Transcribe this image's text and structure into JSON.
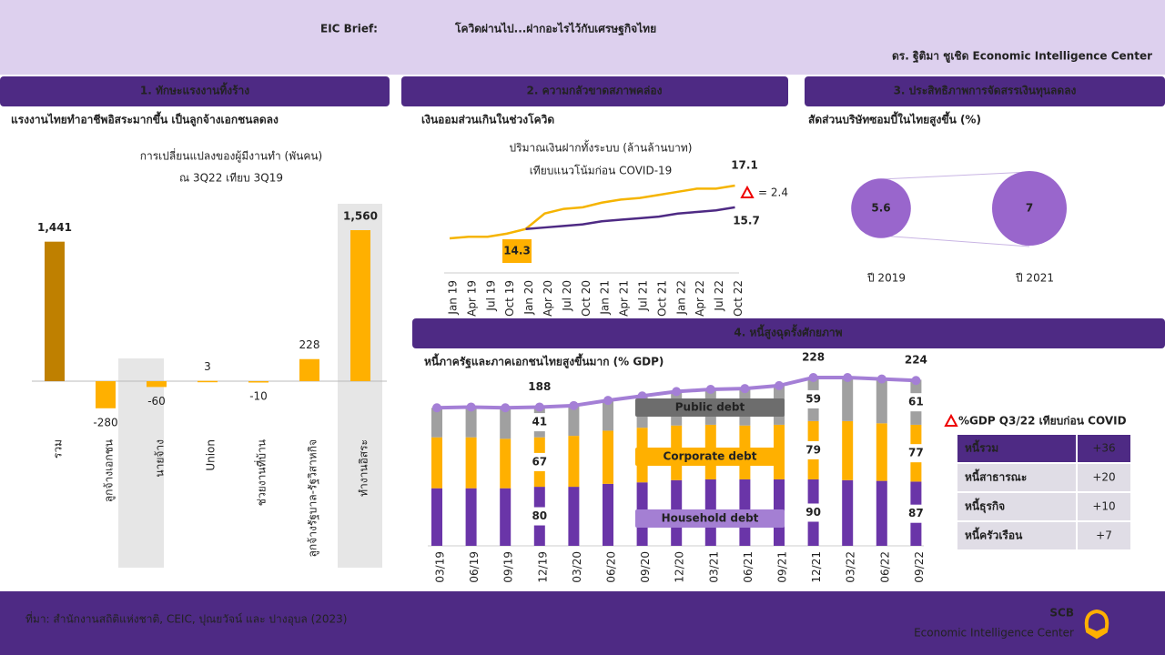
{
  "header": {
    "title_prefix": "EIC Brief:",
    "title": "โควิดผ่านไป...ฝากอะไรไว้กับเศรษฐกิจไทย",
    "author": "ดร. ฐิติมา ชูเชิด Economic Intelligence Center"
  },
  "sections": [
    {
      "heading": "1. ทักษะแรงงานทิ้งร้าง",
      "subheading": "แรงงานไทยทำอาชีพอิสระมากขึ้น เป็นลูกจ้างเอกชนลดลง"
    },
    {
      "heading": "2. ความกลัวขาดสภาพคล่อง",
      "subheading": "เงินออมส่วนเกินในช่วงโควิด"
    },
    {
      "heading": "3. ประสิทธิภาพการจัดสรรเงินทุนลดลง",
      "subheading": "สัดส่วนบริษัทซอมบี้ในไทยสูงขึ้น (%)"
    },
    {
      "heading": "4. หนี้สูงฉุดรั้งศักยภาพ",
      "subheading": "หนี้ภาครัฐและภาคเอกชนไทยสูงขึ้นมาก (% GDP)"
    }
  ],
  "chart_data": [
    {
      "type": "bar",
      "title": "การเปลี่ยนแปลงของผู้มีงานทำ (พันคน)",
      "subtitle": "ณ 3Q22 เทียบ 3Q19",
      "categories": [
        "รวม",
        "ลูกจ้างเอกชน",
        "นายจ้าง",
        "Union",
        "ช่วยงานที่บ้าน",
        "ลูกจ้างรัฐบาล-รัฐวิสาหกิจ",
        "ทำงานอิสระ"
      ],
      "values": [
        1441,
        -280,
        -60,
        3,
        -10,
        228,
        1560
      ],
      "value_labels": [
        "1,441",
        "-280",
        "-60",
        "3",
        "-10",
        "228",
        "1,560"
      ],
      "colors": [
        "#bf8000",
        "#ffb000",
        "#ffb000",
        "#ffb000",
        "#ffb000",
        "#ffb000",
        "#ffb000"
      ]
    },
    {
      "type": "line",
      "title": "ปริมาณเงินฝากทั้งระบบ (ล้านล้านบาท)",
      "subtitle": "เทียบแนวโน้มก่อน COVID-19",
      "annotation": "= 2.4",
      "x": [
        "Jan 19",
        "Apr 19",
        "Jul 19",
        "Oct 19",
        "Jan 20",
        "Apr 20",
        "Jul 20",
        "Oct 20",
        "Jan 21",
        "Apr 21",
        "Jul 21",
        "Oct 21",
        "Jan 22",
        "Apr 22",
        "Jul 22",
        "Oct 22"
      ],
      "series": [
        {
          "color": "#f5b400",
          "values": [
            13.7,
            13.8,
            13.8,
            14.0,
            14.3,
            15.3,
            15.6,
            15.7,
            16.0,
            16.2,
            16.3,
            16.5,
            16.7,
            16.9,
            16.9,
            17.1
          ]
        },
        {
          "color": "#4e2a84",
          "values": [
            null,
            null,
            null,
            null,
            14.3,
            14.4,
            14.5,
            14.6,
            14.8,
            14.9,
            15.0,
            15.1,
            15.3,
            15.4,
            15.5,
            15.7
          ]
        }
      ]
    },
    {
      "type": "bubble",
      "categories": [
        "ปี 2019",
        "ปี 2021"
      ],
      "values": [
        5.6,
        7
      ],
      "color": "#9966cc"
    },
    {
      "type": "stacked-bar-line",
      "categories": [
        "03/19",
        "06/19",
        "09/19",
        "12/19",
        "03/20",
        "06/20",
        "09/20",
        "12/20",
        "03/21",
        "06/21",
        "09/21",
        "12/21",
        "03/22",
        "06/22",
        "09/22"
      ],
      "series": [
        {
          "name": "Household debt",
          "color": "#6a35a8",
          "values": [
            78,
            78,
            78,
            80,
            80,
            84,
            86,
            89,
            90,
            90,
            90,
            90,
            89,
            88,
            87
          ]
        },
        {
          "name": "Corporate debt",
          "color": "#ffb000",
          "values": [
            69,
            69,
            67,
            67,
            69,
            72,
            74,
            74,
            74,
            73,
            74,
            79,
            80,
            78,
            77
          ]
        },
        {
          "name": "Public debt",
          "color": "#a0a0a0",
          "values": [
            40,
            41,
            42,
            41,
            41,
            41,
            43,
            46,
            48,
            50,
            53,
            59,
            59,
            60,
            61
          ]
        },
        {
          "color": "#a47fd6",
          "values": [
            187,
            188,
            187,
            188,
            190,
            197,
            203,
            209,
            212,
            213,
            217,
            228,
            228,
            226,
            224
          ]
        }
      ]
    }
  ],
  "table": {
    "title": "%GDP Q3/22 เทียบก่อน COVID",
    "rows": [
      [
        "หนี้รวม",
        "+36"
      ],
      [
        "หนี้สาธารณะ",
        "+20"
      ],
      [
        "หนี้ธุรกิจ",
        "+10"
      ],
      [
        "หนี้ครัวเรือน",
        "+7"
      ]
    ]
  },
  "footer": {
    "source": "ที่มา: สำนักงานสถิติแห่งชาติ, CEIC, ปุณยวัจน์ และ ปางอุบล (2023)",
    "brand": "SCB",
    "unit": "Economic Intelligence Center"
  }
}
